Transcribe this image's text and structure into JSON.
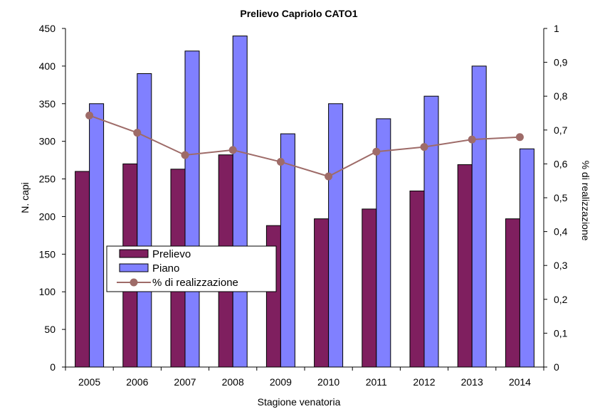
{
  "chart_data": {
    "type": "bar",
    "title": "Prelievo Capriolo CATO1",
    "xlabel": "Stagione venatoria",
    "ylabel": "N. capi",
    "y2label": "% di realizzazione",
    "categories": [
      "2005",
      "2006",
      "2007",
      "2008",
      "2009",
      "2010",
      "2011",
      "2012",
      "2013",
      "2014"
    ],
    "ylim": [
      0,
      450
    ],
    "y2lim": [
      0,
      1
    ],
    "yticks": [
      "0",
      "50",
      "100",
      "150",
      "200",
      "250",
      "300",
      "350",
      "400",
      "450"
    ],
    "y2ticks": [
      "0",
      "0,1",
      "0,2",
      "0,3",
      "0,4",
      "0,5",
      "0,6",
      "0,7",
      "0,8",
      "0,9",
      "1"
    ],
    "series": [
      {
        "name": "Prelievo",
        "type": "bar",
        "axis": "left",
        "color": "#7f1f5f",
        "values": [
          260,
          270,
          263,
          282,
          188,
          197,
          210,
          234,
          269,
          197
        ]
      },
      {
        "name": "Piano",
        "type": "bar",
        "axis": "left",
        "color": "#8080ff",
        "values": [
          350,
          390,
          420,
          440,
          310,
          350,
          330,
          360,
          400,
          290
        ]
      },
      {
        "name": "% di realizzazione",
        "type": "line",
        "axis": "right",
        "color": "#9e6b68",
        "values": [
          0.743,
          0.692,
          0.626,
          0.641,
          0.606,
          0.563,
          0.636,
          0.65,
          0.672,
          0.679
        ]
      }
    ],
    "legend": "center-left",
    "grid": false
  }
}
